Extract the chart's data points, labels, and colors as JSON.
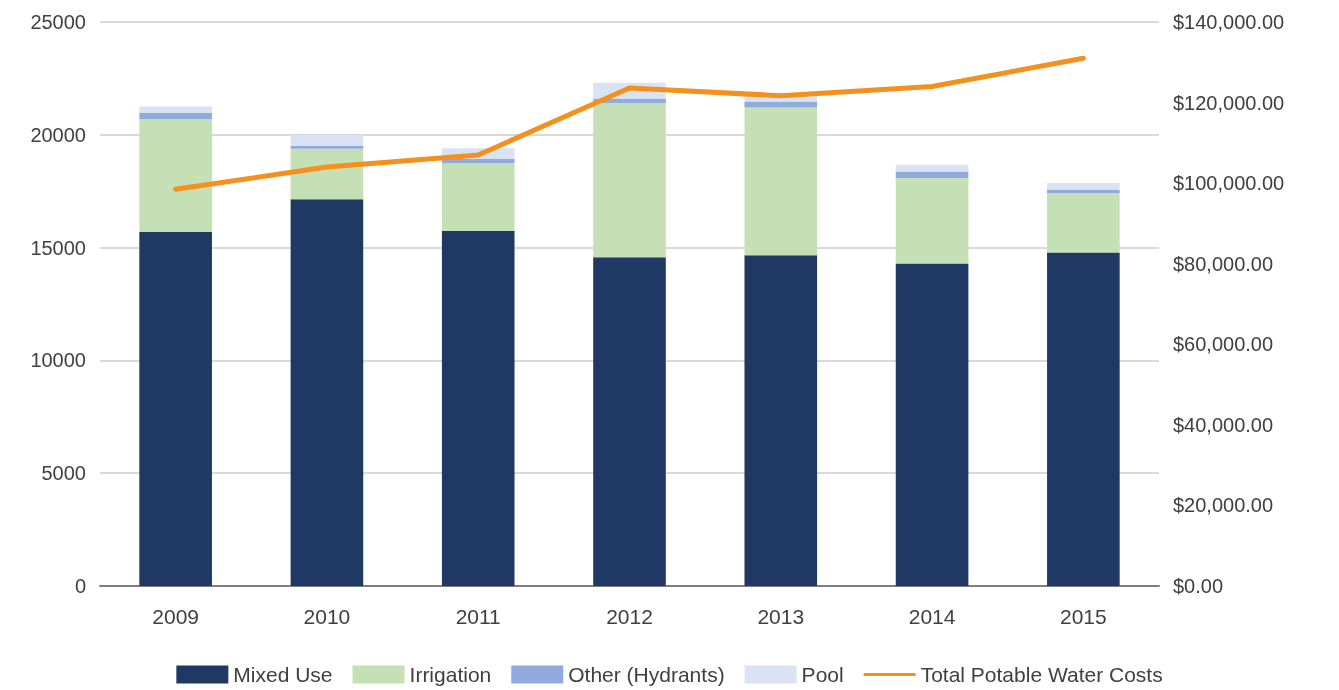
{
  "chart_data": {
    "type": "bar",
    "stacked": true,
    "categories": [
      "2009",
      "2010",
      "2011",
      "2012",
      "2013",
      "2014",
      "2015"
    ],
    "series": [
      {
        "name": "Mixed Use",
        "color": "#1f3864",
        "values": [
          15700,
          17140,
          15750,
          14570,
          14660,
          14290,
          14780
        ]
      },
      {
        "name": "Irrigation",
        "color": "#c5e0b4",
        "values": [
          5000,
          2240,
          2990,
          6830,
          6550,
          3790,
          2630
        ]
      },
      {
        "name": "Other (Hydrants)",
        "color": "#8faadc",
        "values": [
          280,
          120,
          190,
          210,
          270,
          290,
          140
        ]
      },
      {
        "name": "Pool",
        "color": "#dae3f3",
        "values": [
          270,
          490,
          470,
          700,
          260,
          300,
          310
        ]
      },
      {
        "name": "Total Potable Water Costs",
        "type": "line",
        "axis": "y2",
        "color": "#f4901e",
        "values": [
          98500,
          104000,
          107000,
          123600,
          121700,
          124000,
          131000
        ]
      }
    ],
    "ylim": [
      0,
      25000
    ],
    "yticks": [
      0,
      5000,
      10000,
      15000,
      20000,
      25000
    ],
    "y2lim": [
      0,
      140000
    ],
    "y2ticks": [
      {
        "value": 0,
        "label": "$0.00"
      },
      {
        "value": 20000,
        "label": "$20,000.00"
      },
      {
        "value": 40000,
        "label": "$40,000.00"
      },
      {
        "value": 60000,
        "label": "$60,000.00"
      },
      {
        "value": 80000,
        "label": "$80,000.00"
      },
      {
        "value": 100000,
        "label": "$100,000.00"
      },
      {
        "value": 120000,
        "label": "$120,000.00"
      },
      {
        "value": 140000,
        "label": "$140,000.00"
      }
    ],
    "grid": "y",
    "legend": "bottom",
    "marker": "none",
    "line_style": "solid"
  }
}
